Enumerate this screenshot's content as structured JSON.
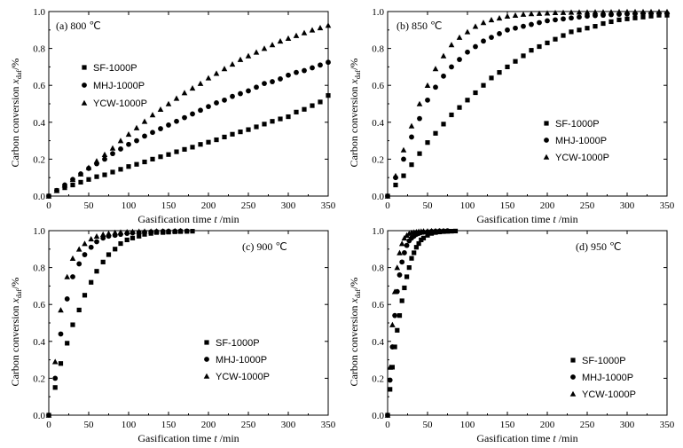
{
  "chart_data": [
    {
      "type": "scatter",
      "panel_label": "(a)  800 ℃",
      "xlabel": "Gasification time",
      "xlabel_var": "t",
      "xlabel_unit": "/min",
      "ylabel": "Carbon conversion",
      "ylabel_var": "x",
      "ylabel_sub": "daf",
      "ylabel_unit": "/%",
      "xlim": [
        0,
        350
      ],
      "ylim": [
        0,
        1.0
      ],
      "xticks": [
        "0",
        "50",
        "100",
        "150",
        "200",
        "250",
        "300",
        "350"
      ],
      "yticks": [
        "0.0",
        "0.2",
        "0.4",
        "0.6",
        "0.8",
        "1.0"
      ],
      "legend_position": "left",
      "series": [
        {
          "name": "SF-1000P",
          "marker": "square",
          "x": [
            0,
            10,
            20,
            30,
            40,
            50,
            60,
            70,
            80,
            90,
            100,
            110,
            120,
            130,
            140,
            150,
            160,
            170,
            180,
            190,
            200,
            210,
            220,
            230,
            240,
            250,
            260,
            270,
            280,
            290,
            300,
            310,
            320,
            330,
            340,
            350
          ],
          "y": [
            0.0,
            0.03,
            0.045,
            0.06,
            0.075,
            0.09,
            0.105,
            0.115,
            0.13,
            0.145,
            0.16,
            0.172,
            0.185,
            0.2,
            0.213,
            0.225,
            0.24,
            0.253,
            0.265,
            0.28,
            0.292,
            0.305,
            0.32,
            0.335,
            0.348,
            0.36,
            0.375,
            0.39,
            0.405,
            0.418,
            0.43,
            0.455,
            0.47,
            0.49,
            0.51,
            0.545
          ]
        },
        {
          "name": "MHJ-1000P",
          "marker": "circle",
          "x": [
            0,
            10,
            20,
            30,
            40,
            50,
            60,
            70,
            80,
            90,
            100,
            110,
            120,
            130,
            140,
            150,
            160,
            170,
            180,
            190,
            200,
            210,
            220,
            230,
            240,
            250,
            260,
            270,
            280,
            290,
            300,
            310,
            320,
            330,
            340,
            350
          ],
          "y": [
            0.0,
            0.03,
            0.06,
            0.09,
            0.12,
            0.15,
            0.175,
            0.2,
            0.23,
            0.255,
            0.28,
            0.3,
            0.325,
            0.345,
            0.365,
            0.385,
            0.405,
            0.425,
            0.445,
            0.465,
            0.485,
            0.505,
            0.52,
            0.54,
            0.555,
            0.57,
            0.59,
            0.61,
            0.62,
            0.635,
            0.655,
            0.67,
            0.68,
            0.695,
            0.71,
            0.725
          ]
        },
        {
          "name": "YCW-1000P",
          "marker": "triangle",
          "x": [
            0,
            10,
            20,
            30,
            40,
            50,
            60,
            70,
            80,
            90,
            100,
            110,
            120,
            130,
            140,
            150,
            160,
            170,
            180,
            190,
            200,
            210,
            220,
            230,
            240,
            250,
            260,
            270,
            280,
            290,
            300,
            310,
            320,
            330,
            340,
            350
          ],
          "y": [
            0.0,
            0.03,
            0.06,
            0.09,
            0.12,
            0.155,
            0.19,
            0.225,
            0.26,
            0.3,
            0.335,
            0.37,
            0.405,
            0.44,
            0.47,
            0.5,
            0.53,
            0.56,
            0.585,
            0.61,
            0.64,
            0.665,
            0.69,
            0.715,
            0.74,
            0.76,
            0.78,
            0.8,
            0.82,
            0.84,
            0.855,
            0.87,
            0.885,
            0.9,
            0.912,
            0.925
          ]
        }
      ]
    },
    {
      "type": "scatter",
      "panel_label": "(b)  850 ℃",
      "xlabel": "Gasification time",
      "xlabel_var": "t",
      "xlabel_unit": "/min",
      "ylabel": "Carbon conversion",
      "ylabel_var": "x",
      "ylabel_sub": "daf",
      "ylabel_unit": "/%",
      "xlim": [
        0,
        350
      ],
      "ylim": [
        0,
        1.0
      ],
      "xticks": [
        "0",
        "50",
        "100",
        "150",
        "200",
        "250",
        "300",
        "350"
      ],
      "yticks": [
        "0.0",
        "0.2",
        "0.4",
        "0.6",
        "0.8",
        "1.0"
      ],
      "legend_position": "right",
      "series": [
        {
          "name": "SF-1000P",
          "marker": "square",
          "x": [
            0,
            10,
            20,
            30,
            40,
            50,
            60,
            70,
            80,
            90,
            100,
            110,
            120,
            130,
            140,
            150,
            160,
            170,
            180,
            190,
            200,
            210,
            220,
            230,
            240,
            250,
            260,
            270,
            280,
            290,
            300,
            310,
            320,
            330,
            340,
            350
          ],
          "y": [
            0.0,
            0.06,
            0.11,
            0.17,
            0.23,
            0.29,
            0.34,
            0.39,
            0.44,
            0.48,
            0.52,
            0.56,
            0.6,
            0.64,
            0.67,
            0.7,
            0.73,
            0.76,
            0.79,
            0.81,
            0.83,
            0.85,
            0.87,
            0.89,
            0.9,
            0.91,
            0.92,
            0.935,
            0.945,
            0.955,
            0.96,
            0.965,
            0.97,
            0.975,
            0.98,
            0.98
          ]
        },
        {
          "name": "MHJ-1000P",
          "marker": "circle",
          "x": [
            0,
            10,
            20,
            30,
            40,
            50,
            60,
            70,
            80,
            90,
            100,
            110,
            120,
            130,
            140,
            150,
            160,
            170,
            180,
            190,
            200,
            210,
            220,
            230,
            240,
            250,
            260,
            270,
            280,
            290,
            300,
            310,
            320,
            330,
            340,
            350
          ],
          "y": [
            0.0,
            0.1,
            0.2,
            0.32,
            0.42,
            0.52,
            0.59,
            0.65,
            0.7,
            0.74,
            0.78,
            0.81,
            0.84,
            0.86,
            0.88,
            0.9,
            0.91,
            0.92,
            0.93,
            0.94,
            0.95,
            0.955,
            0.96,
            0.965,
            0.97,
            0.975,
            0.978,
            0.98,
            0.983,
            0.985,
            0.987,
            0.988,
            0.99,
            0.99,
            0.99,
            0.99
          ]
        },
        {
          "name": "YCW-1000P",
          "marker": "triangle",
          "x": [
            0,
            10,
            20,
            30,
            40,
            50,
            60,
            70,
            80,
            90,
            100,
            110,
            120,
            130,
            140,
            150,
            160,
            170,
            180,
            190,
            200,
            210,
            220,
            230,
            240,
            250,
            260,
            270,
            280,
            290,
            300,
            310,
            320,
            330,
            340,
            350
          ],
          "y": [
            0.0,
            0.11,
            0.25,
            0.38,
            0.5,
            0.6,
            0.69,
            0.76,
            0.82,
            0.86,
            0.89,
            0.92,
            0.94,
            0.955,
            0.965,
            0.975,
            0.98,
            0.985,
            0.988,
            0.99,
            0.992,
            0.994,
            0.995,
            0.996,
            0.997,
            0.997,
            0.998,
            0.998,
            0.998,
            0.999,
            0.999,
            0.999,
            0.999,
            0.999,
            0.999,
            0.999
          ]
        }
      ]
    },
    {
      "type": "scatter",
      "panel_label": "(c)  900 ℃",
      "xlabel": "Gasification time",
      "xlabel_var": "t",
      "xlabel_unit": "/min",
      "ylabel": "Carbon conversion",
      "ylabel_var": "x",
      "ylabel_sub": "daf",
      "ylabel_unit": "/%",
      "xlim": [
        0,
        350
      ],
      "ylim": [
        0,
        1.0
      ],
      "xticks": [
        "0",
        "50",
        "100",
        "150",
        "200",
        "250",
        "300",
        "350"
      ],
      "yticks": [
        "0.0",
        "0.2",
        "0.4",
        "0.6",
        "0.8",
        "1.0"
      ],
      "legend_position": "bottom-right",
      "series": [
        {
          "name": "SF-1000P",
          "marker": "square",
          "x": [
            0,
            8,
            15,
            23,
            30,
            38,
            45,
            53,
            60,
            68,
            75,
            83,
            90,
            98,
            105,
            113,
            120,
            128,
            135,
            143,
            150,
            158,
            165,
            173,
            180
          ],
          "y": [
            0.0,
            0.15,
            0.28,
            0.39,
            0.49,
            0.57,
            0.65,
            0.72,
            0.78,
            0.83,
            0.87,
            0.9,
            0.93,
            0.95,
            0.96,
            0.97,
            0.98,
            0.985,
            0.99,
            0.99,
            0.992,
            0.994,
            0.995,
            0.996,
            0.997
          ]
        },
        {
          "name": "MHJ-1000P",
          "marker": "circle",
          "x": [
            0,
            8,
            15,
            23,
            30,
            38,
            45,
            53,
            60,
            68,
            75,
            83,
            90,
            98,
            105,
            113,
            120,
            128,
            135,
            143,
            150,
            158,
            165,
            173
          ],
          "y": [
            0.0,
            0.2,
            0.44,
            0.63,
            0.75,
            0.82,
            0.87,
            0.91,
            0.94,
            0.96,
            0.97,
            0.975,
            0.98,
            0.985,
            0.988,
            0.99,
            0.992,
            0.994,
            0.995,
            0.996,
            0.997,
            0.997,
            0.998,
            0.998
          ]
        },
        {
          "name": "YCW-1000P",
          "marker": "triangle",
          "x": [
            0,
            8,
            15,
            23,
            30,
            38,
            45,
            53,
            60,
            68,
            75,
            83,
            90,
            98,
            105,
            113,
            120,
            128,
            135,
            143,
            150,
            158,
            165
          ],
          "y": [
            0.0,
            0.29,
            0.57,
            0.75,
            0.85,
            0.9,
            0.93,
            0.955,
            0.97,
            0.98,
            0.985,
            0.99,
            0.992,
            0.994,
            0.995,
            0.996,
            0.997,
            0.997,
            0.998,
            0.998,
            0.998,
            0.999,
            0.999
          ]
        }
      ]
    },
    {
      "type": "scatter",
      "panel_label": "(d)  950 ℃",
      "xlabel": "Gasification time",
      "xlabel_var": "t",
      "xlabel_unit": "/min",
      "ylabel": "Carbon conversion",
      "ylabel_var": "x",
      "ylabel_sub": "daf",
      "ylabel_unit": "/%",
      "xlim": [
        0,
        350
      ],
      "ylim": [
        0,
        1.0
      ],
      "xticks": [
        "0",
        "50",
        "100",
        "150",
        "200",
        "250",
        "300",
        "350"
      ],
      "yticks": [
        "0.0",
        "0.2",
        "0.4",
        "0.6",
        "0.8",
        "1.0"
      ],
      "legend_position": "bottom-right",
      "series": [
        {
          "name": "SF-1000P",
          "marker": "square",
          "x": [
            0,
            3,
            6,
            9,
            12,
            15,
            18,
            21,
            24,
            27,
            30,
            33,
            36,
            39,
            42,
            45,
            50,
            55,
            60,
            65,
            70,
            75,
            80,
            85
          ],
          "y": [
            0.0,
            0.14,
            0.26,
            0.37,
            0.46,
            0.54,
            0.62,
            0.69,
            0.75,
            0.8,
            0.85,
            0.88,
            0.91,
            0.93,
            0.95,
            0.96,
            0.975,
            0.985,
            0.99,
            0.993,
            0.995,
            0.996,
            0.997,
            0.998
          ]
        },
        {
          "name": "MHJ-1000P",
          "marker": "circle",
          "x": [
            0,
            3,
            6,
            9,
            12,
            15,
            18,
            21,
            24,
            27,
            30,
            33,
            36,
            39,
            42,
            45,
            50,
            55,
            60,
            65,
            70,
            75
          ],
          "y": [
            0.0,
            0.19,
            0.37,
            0.54,
            0.67,
            0.76,
            0.83,
            0.88,
            0.92,
            0.945,
            0.96,
            0.97,
            0.98,
            0.985,
            0.99,
            0.992,
            0.994,
            0.996,
            0.997,
            0.998,
            0.998,
            0.999
          ]
        },
        {
          "name": "YCW-1000P",
          "marker": "triangle",
          "x": [
            0,
            3,
            6,
            9,
            12,
            15,
            18,
            21,
            24,
            27,
            30,
            33,
            36,
            39,
            42,
            45,
            50,
            55,
            60,
            65,
            70
          ],
          "y": [
            0.0,
            0.26,
            0.49,
            0.67,
            0.8,
            0.88,
            0.93,
            0.96,
            0.975,
            0.985,
            0.99,
            0.992,
            0.994,
            0.996,
            0.997,
            0.998,
            0.998,
            0.999,
            0.999,
            0.999,
            0.999
          ]
        }
      ]
    }
  ]
}
